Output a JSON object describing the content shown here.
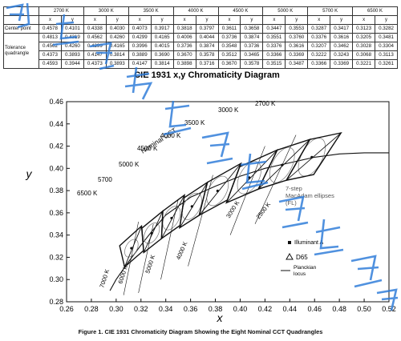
{
  "table": {
    "cct_headers": [
      "2700 K",
      "3000 K",
      "3500 K",
      "4000 K",
      "4500 K",
      "5000 K",
      "5700 K",
      "6500 K"
    ],
    "xy_header": [
      "x",
      "y"
    ],
    "row_labels": {
      "center": "Center point",
      "tolerance": "Tolerance quadrangle"
    },
    "rows": [
      [
        "0.4578",
        "0.4101",
        "0.4338",
        "0.4030",
        "0.4073",
        "0.3917",
        "0.3818",
        "0.3797",
        "0.3611",
        "0.3658",
        "0.3447",
        "0.3553",
        "0.3287",
        "0.3417",
        "0.3123",
        "0.3282"
      ],
      [
        "0.4813",
        "0.4319",
        "0.4562",
        "0.4260",
        "0.4299",
        "0.4165",
        "0.4006",
        "0.4044",
        "0.3736",
        "0.3874",
        "0.3551",
        "0.3760",
        "0.3376",
        "0.3616",
        "0.3205",
        "0.3481"
      ],
      [
        "0.4562",
        "0.4260",
        "0.4299",
        "0.4165",
        "0.3996",
        "0.4015",
        "0.3736",
        "0.3874",
        "0.3548",
        "0.3736",
        "0.3376",
        "0.3616",
        "0.3207",
        "0.3462",
        "0.3028",
        "0.3304"
      ],
      [
        "0.4373",
        "0.3893",
        "0.4147",
        "0.3814",
        "0.3889",
        "0.3690",
        "0.3670",
        "0.3578",
        "0.3512",
        "0.3465",
        "0.3366",
        "0.3369",
        "0.3222",
        "0.3243",
        "0.3068",
        "0.3113"
      ],
      [
        "0.4593",
        "0.3944",
        "0.4373",
        "0.3893",
        "0.4147",
        "0.3814",
        "0.3898",
        "0.3716",
        "0.3670",
        "0.3578",
        "0.3515",
        "0.3487",
        "0.3366",
        "0.3369",
        "0.3221",
        "0.3261"
      ]
    ]
  },
  "chart_data": {
    "type": "scatter",
    "title": "CIE 1931  x,y Chromaticity Diagram",
    "xlabel": "x",
    "ylabel": "y",
    "xlim": [
      0.26,
      0.52
    ],
    "ylim": [
      0.28,
      0.46
    ],
    "x_ticks": [
      "0.26",
      "0.28",
      "0.30",
      "0.32",
      "0.34",
      "0.36",
      "0.38",
      "0.40",
      "0.42",
      "0.44",
      "0.46",
      "0.48",
      "0.50",
      "0.52"
    ],
    "y_ticks": [
      "0.28",
      "0.30",
      "0.32",
      "0.34",
      "0.36",
      "0.38",
      "0.40",
      "0.42",
      "0.44",
      "0.46"
    ],
    "planckian_locus": [
      [
        0.295,
        0.29
      ],
      [
        0.3,
        0.3
      ],
      [
        0.31,
        0.316
      ],
      [
        0.32,
        0.331
      ],
      [
        0.33,
        0.345
      ],
      [
        0.34,
        0.358
      ],
      [
        0.35,
        0.366
      ],
      [
        0.36,
        0.374
      ],
      [
        0.38,
        0.384
      ],
      [
        0.4,
        0.393
      ],
      [
        0.42,
        0.4
      ],
      [
        0.44,
        0.405
      ],
      [
        0.46,
        0.41
      ],
      [
        0.48,
        0.413
      ],
      [
        0.5,
        0.414
      ],
      [
        0.52,
        0.414
      ]
    ],
    "quadrangles": [
      {
        "name": "2700 K",
        "points": [
          [
            0.4813,
            0.4319
          ],
          [
            0.4562,
            0.426
          ],
          [
            0.4373,
            0.3893
          ],
          [
            0.4593,
            0.3944
          ]
        ]
      },
      {
        "name": "3000 K",
        "points": [
          [
            0.4562,
            0.426
          ],
          [
            0.4299,
            0.4165
          ],
          [
            0.4147,
            0.3814
          ],
          [
            0.4373,
            0.3893
          ]
        ]
      },
      {
        "name": "3500 K",
        "points": [
          [
            0.4299,
            0.4165
          ],
          [
            0.3996,
            0.4015
          ],
          [
            0.3889,
            0.369
          ],
          [
            0.4147,
            0.3814
          ]
        ]
      },
      {
        "name": "4000 K",
        "points": [
          [
            0.4006,
            0.4044
          ],
          [
            0.3736,
            0.3874
          ],
          [
            0.367,
            0.3578
          ],
          [
            0.3898,
            0.3716
          ]
        ]
      },
      {
        "name": "4500 K",
        "points": [
          [
            0.3736,
            0.3874
          ],
          [
            0.3548,
            0.3736
          ],
          [
            0.3512,
            0.3465
          ],
          [
            0.367,
            0.3578
          ]
        ]
      },
      {
        "name": "5000 K",
        "points": [
          [
            0.3551,
            0.376
          ],
          [
            0.3376,
            0.3616
          ],
          [
            0.3366,
            0.3369
          ],
          [
            0.3515,
            0.3487
          ]
        ]
      },
      {
        "name": "5700 K",
        "points": [
          [
            0.3376,
            0.3616
          ],
          [
            0.3207,
            0.3462
          ],
          [
            0.3222,
            0.3243
          ],
          [
            0.3366,
            0.3369
          ]
        ]
      },
      {
        "name": "6500 K",
        "points": [
          [
            0.3205,
            0.3481
          ],
          [
            0.3028,
            0.3304
          ],
          [
            0.3068,
            0.3113
          ],
          [
            0.3221,
            0.3261
          ]
        ]
      }
    ],
    "center_points": [
      [
        0.4578,
        0.4101
      ],
      [
        0.4338,
        0.403
      ],
      [
        0.4073,
        0.3917
      ],
      [
        0.3818,
        0.3797
      ],
      [
        0.3611,
        0.3658
      ],
      [
        0.3447,
        0.3553
      ],
      [
        0.3287,
        0.3417
      ],
      [
        0.3123,
        0.3282
      ]
    ],
    "cct_labels": [
      "2700 K",
      "3000 K",
      "3500 K",
      "4000 K",
      "4500 K",
      "5000 K",
      "5700",
      "6500 K"
    ],
    "rotated_labels": [
      "7000 K",
      "6000 K",
      "5000 K",
      "4000 K",
      "3000 K",
      "2500 K"
    ],
    "annotations": {
      "nominal": "Nominal CCT",
      "macadam": "7-step\nMacAdam ellipses\n(FL)",
      "legend_a": "Illuminant A",
      "legend_d65": "D65",
      "legend_locus": "Planckian\nlocus"
    },
    "grid": false
  },
  "caption": "Figure 1.  CIE 1931 Chromaticity Diagram Showing the Eight Nominal CCT Quadrangles",
  "colors": {
    "watermark": "#2a7ad8",
    "ink": "#111111",
    "ellipse": "#777777"
  }
}
